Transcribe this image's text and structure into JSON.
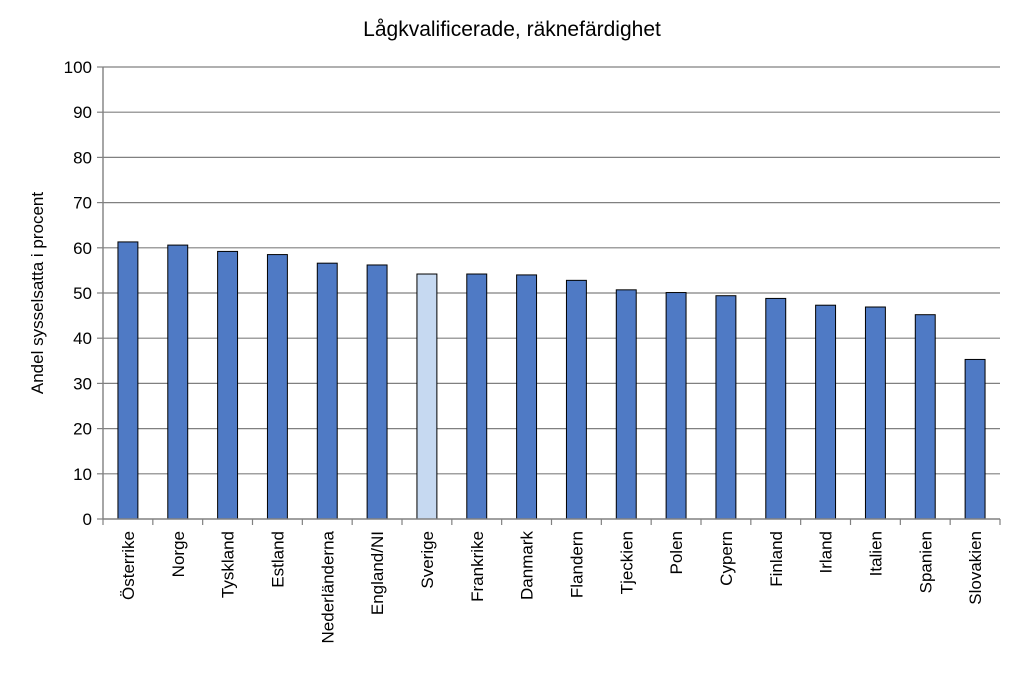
{
  "chart_data": {
    "type": "bar",
    "title": "Lågkvalificerade, räknefärdighet",
    "ylabel": "Andel sysselsatta i procent",
    "xlabel": "",
    "ylim": [
      0,
      100
    ],
    "yticks": [
      0,
      10,
      20,
      30,
      40,
      50,
      60,
      70,
      80,
      90,
      100
    ],
    "grid": true,
    "categories": [
      "Österrike",
      "Norge",
      "Tyskland",
      "Estland",
      "Nederländerna",
      "England/NI",
      "Sverige",
      "Frankrike",
      "Danmark",
      "Flandern",
      "Tjeckien",
      "Polen",
      "Cypern",
      "Finland",
      "Irland",
      "Italien",
      "Spanien",
      "Slovakien"
    ],
    "values": [
      61.3,
      60.6,
      59.2,
      58.5,
      56.6,
      56.2,
      54.2,
      54.2,
      54.0,
      52.8,
      50.7,
      50.1,
      49.4,
      48.8,
      47.3,
      46.9,
      45.2,
      35.3
    ],
    "highlight_category": "Sverige",
    "colors": {
      "bar": "#4f7ac5",
      "highlight": "#c6d9f1",
      "bar_stroke": "#000000",
      "grid": "#808080",
      "axis": "#808080"
    }
  }
}
